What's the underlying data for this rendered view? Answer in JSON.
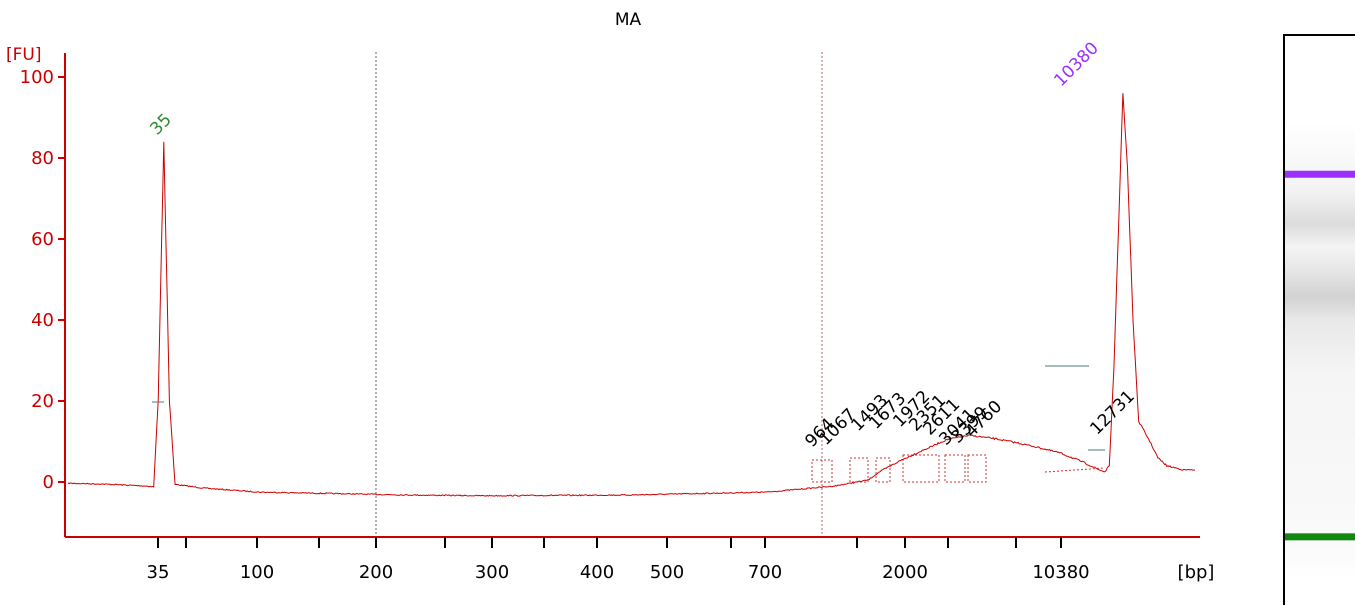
{
  "chart_data": {
    "type": "line",
    "title": "MA",
    "ylabel": "[FU]",
    "xlabel": "[bp]",
    "ylim": [
      -12,
      106
    ],
    "yticks": [
      0,
      20,
      40,
      60,
      80,
      100
    ],
    "xticks": [
      "35",
      "100",
      "200",
      "300",
      "400",
      "500",
      "700",
      "2000",
      "10380"
    ],
    "colors": {
      "trace": "#cc0000",
      "axis": "#cc0000",
      "lower_marker": "#2e8b2e",
      "upper_marker": "#9b30ff",
      "gel_upper": "#9b30ff",
      "gel_lower": "#118811"
    },
    "peaks": [
      {
        "label": "35",
        "position_bp": 35,
        "fu": 84,
        "color": "#2e8b2e"
      },
      {
        "label": "10380",
        "position_bp": 10380,
        "fu": 96,
        "color": "#9b30ff"
      },
      {
        "label": "12731",
        "position_bp": 12731,
        "fu": 10,
        "color": "#000000"
      }
    ],
    "smear_labels": [
      "964",
      "1067",
      "1493",
      "1673",
      "1972",
      "2351",
      "2611",
      "3041",
      "3399",
      "4760"
    ],
    "series": [
      {
        "points": [
          [
            0,
            -0.3
          ],
          [
            3,
            -0.5
          ],
          [
            7,
            -1.0
          ],
          [
            7.6,
            -1.2
          ],
          [
            8,
            20
          ],
          [
            8.5,
            84
          ],
          [
            9,
            20
          ],
          [
            9.5,
            -0.6
          ],
          [
            12,
            -1.5
          ],
          [
            17,
            -2.5
          ],
          [
            30,
            -3.2
          ],
          [
            37,
            -3.4
          ],
          [
            50,
            -3.2
          ],
          [
            62,
            -2.5
          ],
          [
            68,
            -1.0
          ],
          [
            71,
            0.5
          ],
          [
            72,
            2.5
          ],
          [
            74,
            5.5
          ],
          [
            76,
            8.0
          ],
          [
            78,
            10.5
          ],
          [
            80,
            11.5
          ],
          [
            82,
            10.8
          ],
          [
            84,
            9.8
          ],
          [
            86,
            8.6
          ],
          [
            88,
            7.2
          ],
          [
            90,
            5.0
          ],
          [
            91.5,
            3.0
          ],
          [
            92,
            2.5
          ],
          [
            92.4,
            4
          ],
          [
            92.8,
            28
          ],
          [
            93.3,
            70
          ],
          [
            93.6,
            96
          ],
          [
            94.0,
            78
          ],
          [
            94.5,
            40
          ],
          [
            95,
            15
          ],
          [
            96,
            10
          ],
          [
            96.7,
            6
          ],
          [
            97.5,
            4.0
          ],
          [
            99,
            3.0
          ],
          [
            100,
            3.0
          ]
        ]
      }
    ]
  },
  "gel": {
    "bands": [
      {
        "name": "upper-marker",
        "fraction": 0.25,
        "color": "#9b30ff"
      },
      {
        "name": "lower-marker",
        "fraction": 0.885,
        "color": "#118811"
      }
    ]
  }
}
